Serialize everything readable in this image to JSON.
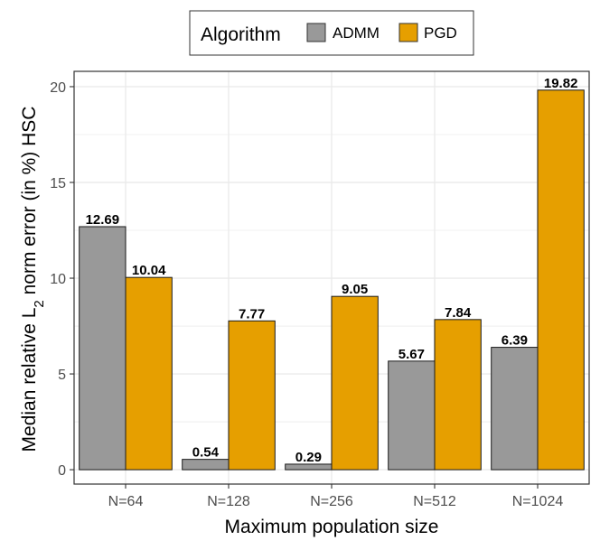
{
  "chart_data": {
    "type": "bar",
    "title": "",
    "xlabel": "Maximum population size",
    "ylabel_main": "Median relative L",
    "ylabel_sub": "2",
    "ylabel_rest": " norm error (in %) HSC",
    "categories": [
      "N=64",
      "N=128",
      "N=256",
      "N=512",
      "N=1024"
    ],
    "series": [
      {
        "name": "ADMM",
        "color": "#999999",
        "values": [
          12.69,
          0.54,
          0.29,
          5.67,
          6.39
        ],
        "labels": [
          "12.69",
          "0.54",
          "0.29",
          "5.67",
          "6.39"
        ]
      },
      {
        "name": "PGD",
        "color": "#E69F00",
        "values": [
          10.04,
          7.77,
          9.05,
          7.84,
          19.82
        ],
        "labels": [
          "10.04",
          "7.77",
          "9.05",
          "7.84",
          "19.82"
        ]
      }
    ],
    "ylim": [
      -0.75,
      20.8
    ],
    "yticks": [
      0,
      5,
      10,
      15,
      20
    ],
    "ytick_labels": [
      "0",
      "5",
      "10",
      "15",
      "20"
    ],
    "legend": {
      "title": "Algorithm",
      "position": "top"
    },
    "grid": true
  }
}
